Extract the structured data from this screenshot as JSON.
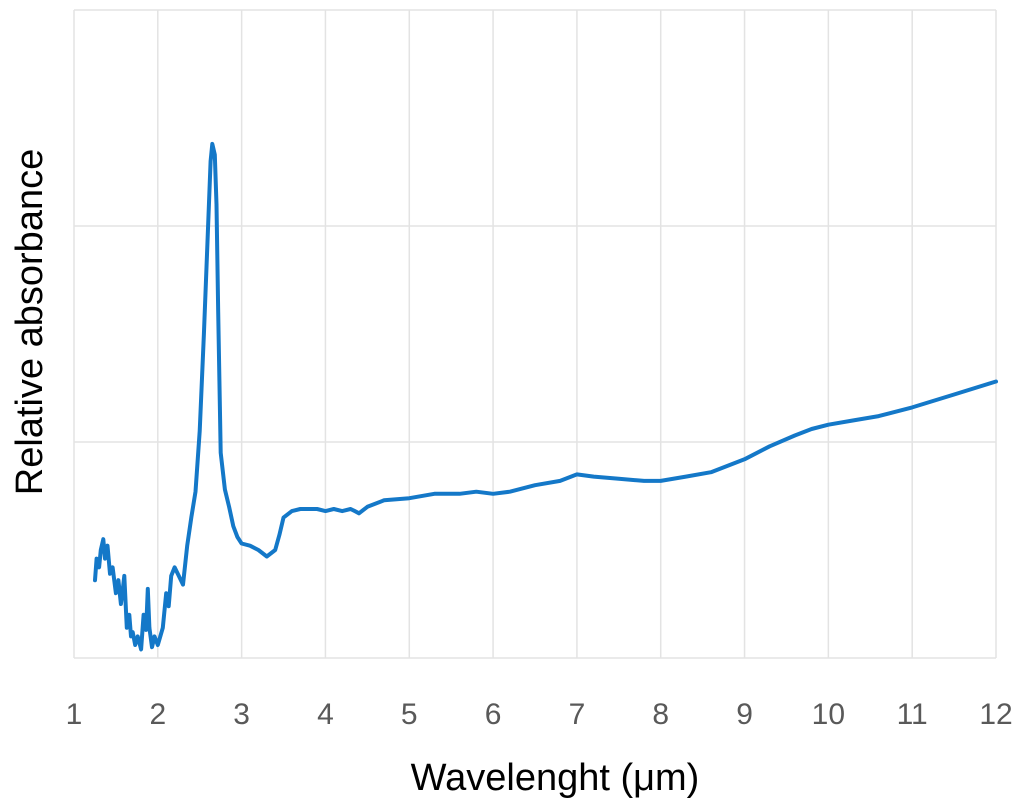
{
  "chart_data": {
    "type": "line",
    "title": "",
    "xlabel": "Wavelenght (μm)",
    "ylabel": "Relative absorbance",
    "xlim": [
      1,
      12
    ],
    "ylim": [
      0,
      3
    ],
    "x_ticks": [
      "1",
      "2",
      "3",
      "4",
      "5",
      "6",
      "7",
      "8",
      "9",
      "10",
      "11",
      "12"
    ],
    "y_ticks_labeled": false,
    "y_gridlines": [
      1,
      2,
      3
    ],
    "x_gridlines": [
      1,
      2,
      3,
      4,
      5,
      6,
      7,
      8,
      9,
      10,
      11,
      12
    ],
    "grid": true,
    "legend": "none",
    "colors": {
      "series": "#1478c8",
      "grid": "#e3e3e3",
      "tick_label": "#595959"
    },
    "series": [
      {
        "color": "#1478c8",
        "x": [
          1.25,
          1.27,
          1.3,
          1.32,
          1.35,
          1.37,
          1.4,
          1.43,
          1.46,
          1.5,
          1.53,
          1.56,
          1.58,
          1.6,
          1.63,
          1.66,
          1.68,
          1.7,
          1.73,
          1.76,
          1.8,
          1.83,
          1.86,
          1.88,
          1.9,
          1.93,
          1.96,
          2.0,
          2.03,
          2.06,
          2.1,
          2.13,
          2.16,
          2.2,
          2.25,
          2.3,
          2.35,
          2.4,
          2.45,
          2.5,
          2.55,
          2.6,
          2.63,
          2.65,
          2.68,
          2.7,
          2.72,
          2.75,
          2.8,
          2.85,
          2.9,
          2.95,
          3.0,
          3.1,
          3.2,
          3.3,
          3.4,
          3.45,
          3.5,
          3.6,
          3.7,
          3.8,
          3.9,
          4.0,
          4.1,
          4.2,
          4.3,
          4.35,
          4.4,
          4.5,
          4.7,
          5.0,
          5.3,
          5.6,
          5.8,
          6.0,
          6.2,
          6.5,
          6.8,
          7.0,
          7.2,
          7.5,
          7.8,
          8.0,
          8.3,
          8.6,
          9.0,
          9.3,
          9.6,
          9.8,
          10.0,
          10.3,
          10.6,
          11.0,
          11.5,
          12.0
        ],
        "y": [
          0.36,
          0.46,
          0.42,
          0.5,
          0.55,
          0.46,
          0.52,
          0.39,
          0.42,
          0.3,
          0.36,
          0.25,
          0.31,
          0.38,
          0.14,
          0.2,
          0.1,
          0.12,
          0.06,
          0.1,
          0.04,
          0.2,
          0.13,
          0.32,
          0.14,
          0.05,
          0.1,
          0.06,
          0.1,
          0.14,
          0.3,
          0.24,
          0.38,
          0.42,
          0.38,
          0.34,
          0.52,
          0.65,
          0.77,
          1.05,
          1.5,
          2.0,
          2.3,
          2.38,
          2.33,
          2.1,
          1.6,
          0.95,
          0.78,
          0.7,
          0.61,
          0.56,
          0.53,
          0.52,
          0.5,
          0.47,
          0.5,
          0.57,
          0.65,
          0.68,
          0.69,
          0.69,
          0.69,
          0.68,
          0.69,
          0.68,
          0.69,
          0.68,
          0.67,
          0.7,
          0.73,
          0.74,
          0.76,
          0.76,
          0.77,
          0.76,
          0.77,
          0.8,
          0.82,
          0.85,
          0.84,
          0.83,
          0.82,
          0.82,
          0.84,
          0.86,
          0.92,
          0.98,
          1.03,
          1.06,
          1.08,
          1.1,
          1.12,
          1.16,
          1.22,
          1.28
        ]
      }
    ]
  }
}
